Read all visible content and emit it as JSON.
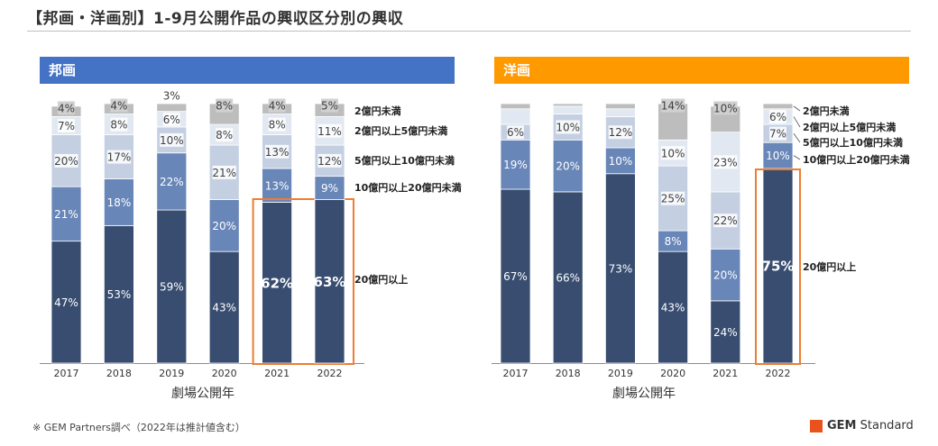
{
  "page": {
    "title": "【邦画・洋画別】1-9月公開作品の興収区分別の興収",
    "footnote": "※ GEM Partners調べ（2022年は推計値含む）",
    "logo_bold": "GEM",
    "logo_rest": " Standard"
  },
  "colors": {
    "seg_20plus": "#384d70",
    "seg_10to20": "#6886b8",
    "seg_5to10": "#c4d0e2",
    "seg_2to5": "#e2e8f1",
    "seg_under2": "#bdbdbd",
    "highlight": "#ee7d31",
    "banner_left": "#4472c4",
    "banner_right": "#ff9900"
  },
  "chart_data": [
    {
      "type": "bar",
      "stacked": true,
      "title": "邦画",
      "xlabel": "劇場公開年",
      "categories": [
        "2017",
        "2018",
        "2019",
        "2020",
        "2021",
        "2022"
      ],
      "ylim": [
        0,
        100
      ],
      "series": [
        {
          "name": "20億円以上",
          "values": [
            47,
            53,
            59,
            43,
            62,
            63
          ]
        },
        {
          "name": "10億円以上20億円未満",
          "values": [
            21,
            18,
            22,
            20,
            13,
            9
          ]
        },
        {
          "name": "5億円以上10億円未満",
          "values": [
            20,
            17,
            10,
            21,
            13,
            12
          ]
        },
        {
          "name": "2億円以上5億円未満",
          "values": [
            7,
            8,
            6,
            8,
            8,
            11
          ]
        },
        {
          "name": "2億円未満",
          "values": [
            4,
            4,
            3,
            8,
            4,
            5
          ]
        }
      ],
      "highlight_categories": [
        "2021",
        "2022"
      ]
    },
    {
      "type": "bar",
      "stacked": true,
      "title": "洋画",
      "xlabel": "劇場公開年",
      "categories": [
        "2017",
        "2018",
        "2019",
        "2020",
        "2021",
        "2022"
      ],
      "ylim": [
        0,
        100
      ],
      "series": [
        {
          "name": "20億円以上",
          "values": [
            67,
            66,
            73,
            43,
            24,
            75
          ]
        },
        {
          "name": "10億円以上20億円未満",
          "values": [
            19,
            20,
            10,
            8,
            20,
            10
          ]
        },
        {
          "name": "5億円以上10億円未満",
          "values": [
            6,
            10,
            12,
            25,
            22,
            7
          ]
        },
        {
          "name": "2億円以上5億円未満",
          "values": [
            6,
            3,
            3,
            10,
            23,
            6
          ]
        },
        {
          "name": "2億円未満",
          "values": [
            2,
            1,
            2,
            14,
            10,
            2
          ]
        }
      ],
      "label_show": [
        [
          true,
          true,
          true,
          true,
          true,
          true
        ],
        [
          true,
          true,
          true,
          true,
          true,
          true
        ],
        [
          true,
          true,
          true,
          true,
          true,
          true
        ],
        [
          false,
          false,
          false,
          true,
          true,
          true
        ],
        [
          false,
          false,
          false,
          true,
          true,
          false
        ]
      ],
      "highlight_categories": [
        "2022"
      ]
    }
  ]
}
